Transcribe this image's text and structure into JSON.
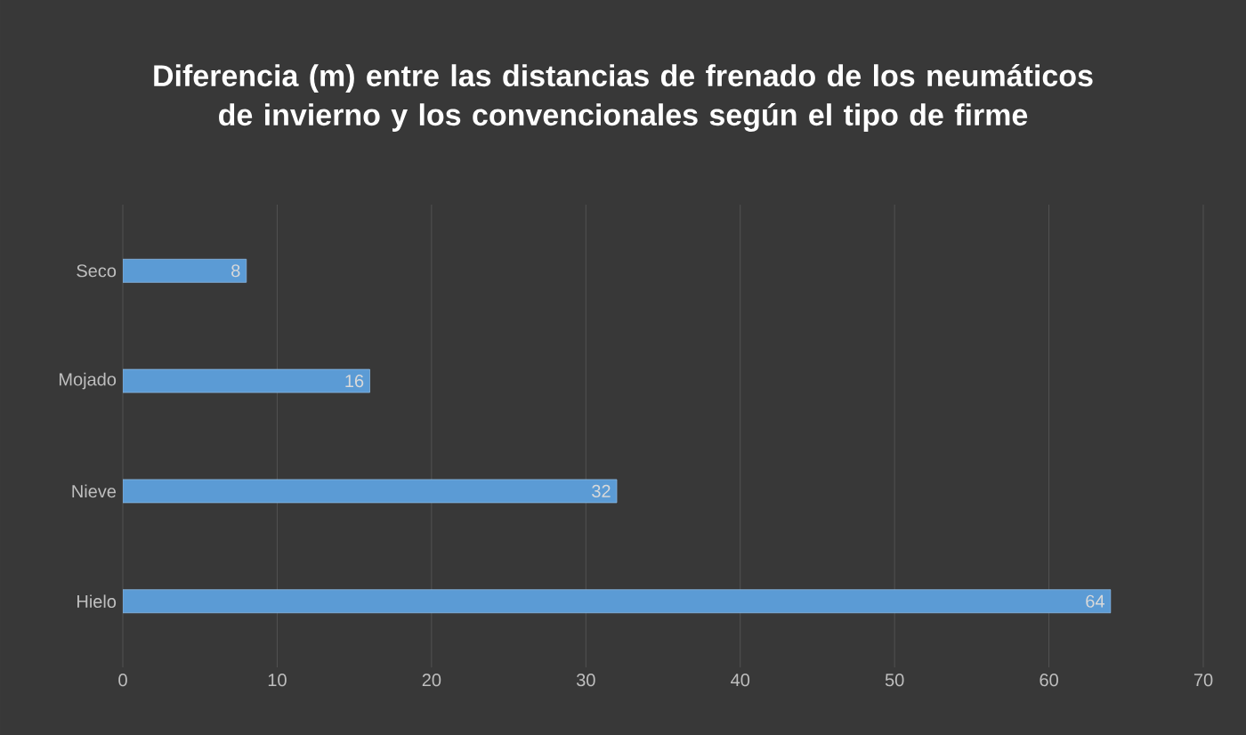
{
  "chart_data": {
    "type": "bar",
    "orientation": "horizontal",
    "title": "Diferencia (m) entre las distancias de frenado de los neumáticos de invierno y los convencionales según el tipo de firme",
    "categories": [
      "Seco",
      "Mojado",
      "Nieve",
      "Hielo"
    ],
    "values": [
      8,
      16,
      32,
      64
    ],
    "color": "#5b9bd5",
    "xlim": [
      0,
      70
    ],
    "xticks": [
      0,
      10,
      20,
      30,
      40,
      50,
      60,
      70
    ],
    "grid": "x",
    "data_labels": true
  }
}
